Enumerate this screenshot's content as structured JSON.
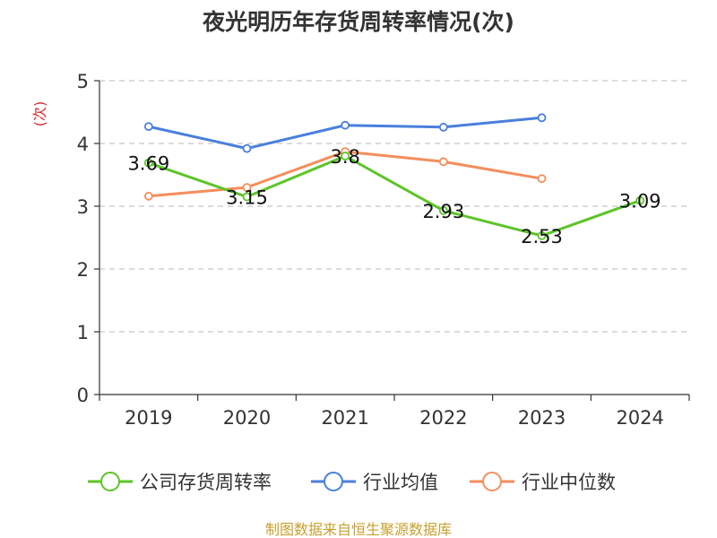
{
  "chart_data": {
    "type": "line",
    "title": "夜光明历年存货周转率情况(次)",
    "ylabel": "(次)",
    "xlabel": "",
    "categories": [
      "2019",
      "2020",
      "2021",
      "2022",
      "2023",
      "2024"
    ],
    "y_ticks": [
      "0",
      "1",
      "2",
      "3",
      "4",
      "5"
    ],
    "ylim": [
      0,
      5
    ],
    "grid": true,
    "legend_position": "bottom",
    "series": [
      {
        "name": "公司存货周转率",
        "color": "#5cc427",
        "values": [
          3.69,
          3.15,
          3.8,
          2.93,
          2.53,
          3.09
        ],
        "labels": [
          "3.69",
          "3.15",
          "3.8",
          "2.93",
          "2.53",
          "3.09"
        ]
      },
      {
        "name": "行业均值",
        "color": "#4a7fdc",
        "values": [
          4.27,
          3.92,
          4.29,
          4.26,
          4.41,
          null
        ]
      },
      {
        "name": "行业中位数",
        "color": "#f58e5b",
        "values": [
          3.16,
          3.3,
          3.87,
          3.71,
          3.44,
          null
        ]
      }
    ]
  },
  "source": "制图数据来自恒生聚源数据库"
}
